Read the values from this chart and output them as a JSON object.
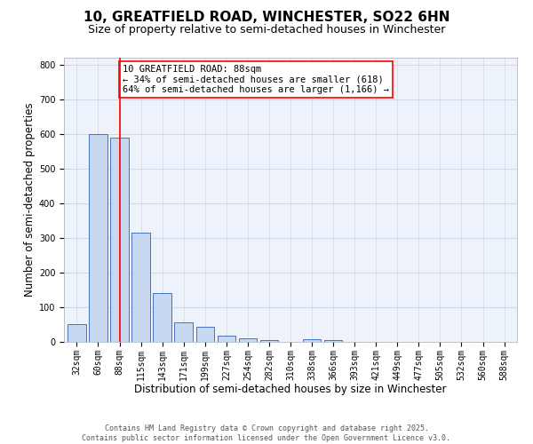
{
  "title": "10, GREATFIELD ROAD, WINCHESTER, SO22 6HN",
  "subtitle": "Size of property relative to semi-detached houses in Winchester",
  "xlabel": "Distribution of semi-detached houses by size in Winchester",
  "ylabel": "Number of semi-detached properties",
  "categories": [
    "32sqm",
    "60sqm",
    "88sqm",
    "115sqm",
    "143sqm",
    "171sqm",
    "199sqm",
    "227sqm",
    "254sqm",
    "282sqm",
    "310sqm",
    "338sqm",
    "366sqm",
    "393sqm",
    "421sqm",
    "449sqm",
    "477sqm",
    "505sqm",
    "532sqm",
    "560sqm",
    "588sqm"
  ],
  "values": [
    50,
    600,
    590,
    315,
    140,
    57,
    43,
    17,
    10,
    5,
    0,
    7,
    5,
    0,
    0,
    0,
    0,
    0,
    0,
    0,
    0
  ],
  "bar_color": "#c6d9f0",
  "bar_edge_color": "#4472c4",
  "grid_color": "#c8d4e8",
  "background_color": "#eef2fa",
  "vline_x_index": 2,
  "vline_color": "red",
  "annotation_text": "10 GREATFIELD ROAD: 88sqm\n← 34% of semi-detached houses are smaller (618)\n64% of semi-detached houses are larger (1,166) →",
  "annotation_box_color": "white",
  "annotation_box_edge_color": "red",
  "ylim": [
    0,
    820
  ],
  "yticks": [
    0,
    100,
    200,
    300,
    400,
    500,
    600,
    700,
    800
  ],
  "footer_line1": "Contains HM Land Registry data © Crown copyright and database right 2025.",
  "footer_line2": "Contains public sector information licensed under the Open Government Licence v3.0.",
  "title_fontsize": 11,
  "subtitle_fontsize": 9,
  "axis_label_fontsize": 8.5,
  "tick_fontsize": 7,
  "annotation_fontsize": 7.5,
  "footer_fontsize": 6
}
